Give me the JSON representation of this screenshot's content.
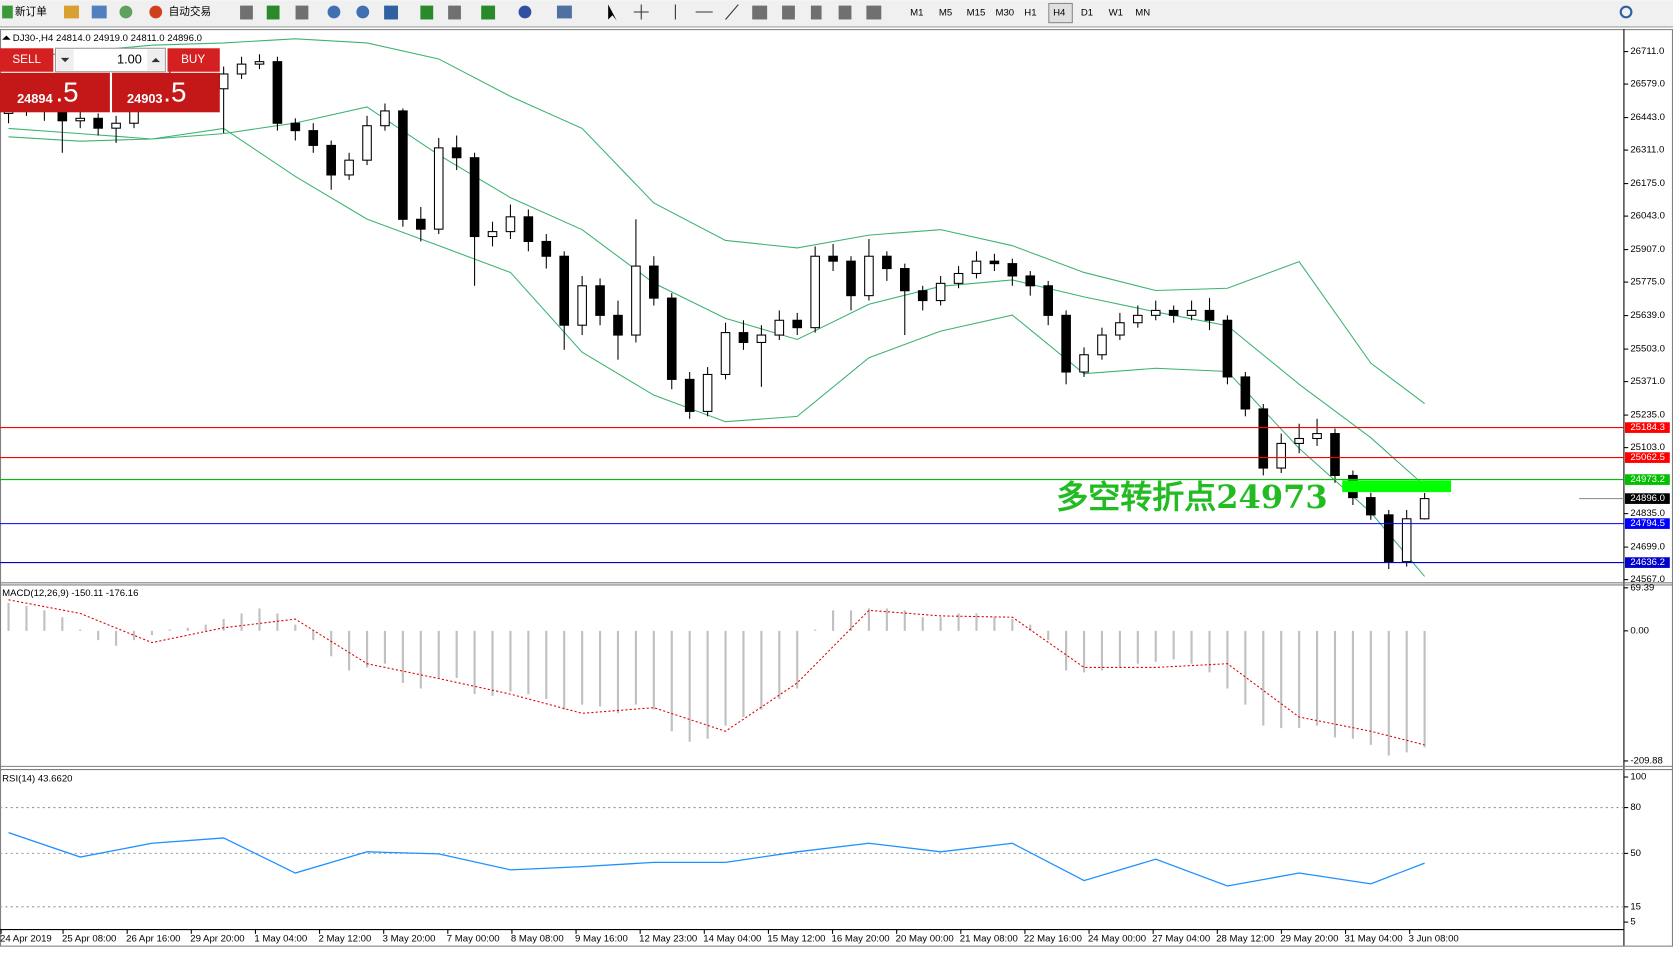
{
  "toolbar": {
    "new_order": "新订单",
    "auto_trade": "自动交易",
    "timeframes": [
      "M1",
      "M5",
      "M15",
      "M30",
      "H1",
      "H4",
      "D1",
      "W1",
      "MN"
    ],
    "active": "H4"
  },
  "trade_panel": {
    "sell": "SELL",
    "lot": "1.00",
    "buy": "BUY",
    "sell_price": "24894",
    "sell_frac": ".5",
    "buy_price": "24903",
    "buy_frac": ".5"
  },
  "price_chart": {
    "header": "DJ30-,H4  24814.0 24919.0 24811.0 24896.0",
    "annotation": "多空转折点24973",
    "ylim": [
      24554,
      26798
    ],
    "yticks": [
      {
        "value": 26711,
        "label": "26711.0"
      },
      {
        "value": 26579,
        "label": "26579.0"
      },
      {
        "value": 26443,
        "label": "26443.0"
      },
      {
        "value": 26311,
        "label": "26311.0"
      },
      {
        "value": 26175,
        "label": "26175.0"
      },
      {
        "value": 26043,
        "label": "26043.0"
      },
      {
        "value": 25907,
        "label": "25907.0"
      },
      {
        "value": 25775,
        "label": "25775.0"
      },
      {
        "value": 25639,
        "label": "25639.0"
      },
      {
        "value": 25503,
        "label": "25503.0"
      },
      {
        "value": 25371,
        "label": "25371.0"
      },
      {
        "value": 25235,
        "label": "25235.0"
      },
      {
        "value": 25103,
        "label": "25103.0"
      },
      {
        "value": 24835,
        "label": "24835.0"
      },
      {
        "value": 24699,
        "label": "24699.0"
      },
      {
        "value": 24567,
        "label": "24567.0"
      }
    ],
    "levels": [
      {
        "price": 25184.3,
        "color": "#ff0000"
      },
      {
        "price": 25062.5,
        "color": "#ff0000"
      },
      {
        "price": 24973.2,
        "color": "#00c000"
      },
      {
        "price": 24794.5,
        "color": "#0000ff"
      },
      {
        "price": 24636.2,
        "color": "#0000cc"
      }
    ],
    "current_price": {
      "value": 24896,
      "label": "24896.0"
    },
    "candles": [
      [
        26460,
        26530,
        26420,
        26480
      ],
      [
        26480,
        26540,
        26450,
        26500
      ],
      [
        26500,
        26520,
        26430,
        26470
      ],
      [
        26470,
        26490,
        26300,
        26430
      ],
      [
        26430,
        26480,
        26400,
        26440
      ],
      [
        26440,
        26460,
        26370,
        26400
      ],
      [
        26400,
        26450,
        26340,
        26420
      ],
      [
        26420,
        26550,
        26400,
        26520
      ],
      [
        26520,
        26590,
        26500,
        26560
      ],
      [
        26560,
        26630,
        26540,
        26600
      ],
      [
        26600,
        26620,
        26550,
        26580
      ],
      [
        26580,
        26600,
        26520,
        26560
      ],
      [
        26560,
        26650,
        26380,
        26620
      ],
      [
        26620,
        26690,
        26600,
        26660
      ],
      [
        26660,
        26700,
        26640,
        26670
      ],
      [
        26670,
        26690,
        26390,
        26420
      ],
      [
        26420,
        26440,
        26350,
        26390
      ],
      [
        26390,
        26420,
        26300,
        26330
      ],
      [
        26330,
        26350,
        26150,
        26210
      ],
      [
        26210,
        26300,
        26190,
        26270
      ],
      [
        26270,
        26450,
        26250,
        26410
      ],
      [
        26410,
        26500,
        26390,
        26470
      ],
      [
        26470,
        26480,
        26000,
        26030
      ],
      [
        26030,
        26080,
        25940,
        25990
      ],
      [
        25990,
        26360,
        25970,
        26320
      ],
      [
        26320,
        26370,
        26230,
        26280
      ],
      [
        26280,
        26300,
        25760,
        25960
      ],
      [
        25960,
        26020,
        25920,
        25980
      ],
      [
        25980,
        26090,
        25950,
        26040
      ],
      [
        26040,
        26070,
        25900,
        25940
      ],
      [
        25940,
        25970,
        25830,
        25880
      ],
      [
        25880,
        25900,
        25500,
        25600
      ],
      [
        25600,
        25800,
        25560,
        25760
      ],
      [
        25760,
        25790,
        25600,
        25640
      ],
      [
        25640,
        25700,
        25460,
        25560
      ],
      [
        25560,
        26030,
        25530,
        25840
      ],
      [
        25840,
        25880,
        25680,
        25710
      ],
      [
        25710,
        25730,
        25340,
        25380
      ],
      [
        25380,
        25410,
        25220,
        25250
      ],
      [
        25250,
        25430,
        25230,
        25400
      ],
      [
        25400,
        25610,
        25380,
        25570
      ],
      [
        25570,
        25620,
        25500,
        25530
      ],
      [
        25530,
        25600,
        25350,
        25560
      ],
      [
        25560,
        25660,
        25540,
        25620
      ],
      [
        25620,
        25650,
        25560,
        25590
      ],
      [
        25590,
        25920,
        25570,
        25880
      ],
      [
        25880,
        25930,
        25820,
        25860
      ],
      [
        25860,
        25880,
        25660,
        25720
      ],
      [
        25720,
        25950,
        25700,
        25880
      ],
      [
        25880,
        25900,
        25780,
        25830
      ],
      [
        25830,
        25850,
        25560,
        25740
      ],
      [
        25740,
        25760,
        25660,
        25700
      ],
      [
        25700,
        25800,
        25680,
        25770
      ],
      [
        25770,
        25840,
        25750,
        25810
      ],
      [
        25810,
        25900,
        25790,
        25860
      ],
      [
        25860,
        25890,
        25820,
        25850
      ],
      [
        25850,
        25870,
        25760,
        25800
      ],
      [
        25800,
        25820,
        25720,
        25760
      ],
      [
        25760,
        25780,
        25600,
        25640
      ],
      [
        25640,
        25660,
        25360,
        25410
      ],
      [
        25410,
        25510,
        25390,
        25480
      ],
      [
        25480,
        25590,
        25460,
        25560
      ],
      [
        25560,
        25650,
        25540,
        25610
      ],
      [
        25610,
        25680,
        25590,
        25640
      ],
      [
        25640,
        25700,
        25620,
        25660
      ],
      [
        25660,
        25680,
        25610,
        25640
      ],
      [
        25640,
        25700,
        25620,
        25660
      ],
      [
        25660,
        25710,
        25580,
        25620
      ],
      [
        25620,
        25640,
        25360,
        25390
      ],
      [
        25390,
        25410,
        25230,
        25260
      ],
      [
        25260,
        25280,
        24990,
        25020
      ],
      [
        25020,
        25160,
        25000,
        25120
      ],
      [
        25120,
        25200,
        25080,
        25140
      ],
      [
        25140,
        25220,
        25110,
        25160
      ],
      [
        25160,
        25180,
        24960,
        24990
      ],
      [
        24990,
        25010,
        24870,
        24900
      ],
      [
        24900,
        24920,
        24810,
        24830
      ],
      [
        24830,
        24850,
        24610,
        24640
      ],
      [
        24640,
        24850,
        24620,
        24814
      ],
      [
        24814,
        24919,
        24811,
        24896
      ]
    ],
    "band_index": [
      0,
      4,
      8,
      12,
      16,
      20,
      24,
      28,
      32,
      36,
      40,
      44,
      48,
      52,
      56,
      60,
      64,
      68,
      72,
      76,
      79
    ],
    "band_upper": [
      26681,
      26711,
      26737,
      26746,
      26763,
      26746,
      26681,
      26529,
      26399,
      26096,
      25944,
      25914,
      25966,
      25988,
      25923,
      25814,
      25741,
      25750,
      25858,
      25446,
      25282
    ],
    "band_middle": [
      26399,
      26378,
      26356,
      26378,
      26421,
      26486,
      26291,
      26118,
      25988,
      25771,
      25628,
      25542,
      25685,
      25758,
      25784,
      25715,
      25654,
      25598,
      25360,
      25143,
      24948
    ],
    "band_lower": [
      26365,
      26347,
      26356,
      26399,
      26204,
      26031,
      25923,
      25814,
      25490,
      25316,
      25208,
      25230,
      25468,
      25576,
      25641,
      25403,
      25425,
      25412,
      25100,
      24840,
      24580
    ]
  },
  "macd": {
    "header": "MACD(12,26,9) -150.11 -176.16",
    "ylim": [
      -218.6,
      74
    ],
    "yticks": [
      69.39,
      {
        "value": 0,
        "label": "0.00"
      },
      -209.88
    ],
    "histogram": [
      45,
      40,
      33,
      22,
      2,
      -15,
      -24,
      -15,
      -7,
      2,
      5,
      10,
      19,
      28,
      36,
      28,
      10,
      -15,
      -41,
      -64,
      -59,
      -53,
      -84,
      -93,
      -76,
      -76,
      -102,
      -105,
      -98,
      -102,
      -110,
      -127,
      -119,
      -122,
      -133,
      -119,
      -127,
      -162,
      -179,
      -174,
      -153,
      -139,
      -127,
      -110,
      -93,
      2,
      33,
      33,
      36,
      36,
      33,
      22,
      22,
      28,
      28,
      22,
      19,
      10,
      -15,
      -64,
      -67,
      -64,
      -59,
      -53,
      -50,
      -46,
      -53,
      -67,
      -93,
      -119,
      -153,
      -157,
      -157,
      -153,
      -172,
      -174,
      -184,
      -201,
      -196,
      -188
    ],
    "signal": [
      50,
      28,
      -19,
      5,
      19,
      -53,
      -77,
      -102,
      -133,
      -124,
      -162,
      -84,
      33,
      24,
      22,
      -59,
      -59,
      -53,
      -139,
      -162,
      -184
    ]
  },
  "rsi": {
    "header": "RSI(14) 43.6620",
    "ylim": [
      0.8,
      104.2
    ],
    "yticks": [
      100,
      80,
      50,
      15,
      5
    ],
    "levels": [
      80,
      50,
      15
    ],
    "values": [
      63.6,
      47.6,
      56.6,
      60.1,
      37.1,
      51.0,
      49.7,
      39.2,
      41.3,
      44.1,
      44.1,
      51.0,
      56.6,
      51.0,
      56.6,
      32.2,
      46.2,
      28.7,
      37.1,
      30.1,
      43.662
    ]
  },
  "time_labels": [
    "24 Apr 2019",
    "25 Apr 08:00",
    "26 Apr 16:00",
    "29 Apr 20:00",
    "1 May 04:00",
    "2 May 12:00",
    "3 May 20:00",
    "7 May 00:00",
    "8 May 08:00",
    "9 May 16:00",
    "12 May 23:00",
    "14 May 04:00",
    "15 May 12:00",
    "16 May 20:00",
    "20 May 00:00",
    "21 May 08:00",
    "22 May 16:00",
    "24 May 00:00",
    "27 May 04:00",
    "28 May 12:00",
    "29 May 20:00",
    "31 May 04:00",
    "3 Jun 08:00"
  ]
}
